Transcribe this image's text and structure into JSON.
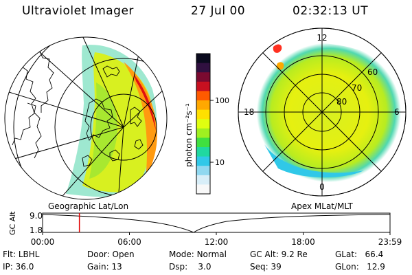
{
  "header": {
    "instrument": "Ultraviolet Imager",
    "date": "27 Jul 00",
    "time": "02:32:13 UT"
  },
  "colorbar": {
    "label": "photon cm⁻²s⁻¹",
    "ticks": [
      "100",
      "10"
    ],
    "colors": [
      "#0a0a1e",
      "#301040",
      "#7a0a30",
      "#c81020",
      "#ff5a00",
      "#ffa800",
      "#ffe000",
      "#e0ff10",
      "#a0f020",
      "#40e040",
      "#20d8a0",
      "#30c8e8",
      "#90d8f0",
      "#d8eef8",
      "#f8f8f8"
    ]
  },
  "left_map": {
    "projection_label": "Geographic Lat/Lon"
  },
  "right_map": {
    "projection_label": "Apex MLat/MLT",
    "mlt_labels": {
      "top": "12",
      "bottom": "0",
      "left": "18",
      "right": "6"
    },
    "lat_labels": [
      "60",
      "70",
      "80"
    ]
  },
  "timeline": {
    "ylabel": "GC Alt",
    "yticks": [
      "9.0",
      "1.8"
    ],
    "xticks": [
      "00:00",
      "06:00",
      "12:00",
      "18:00",
      "23:59"
    ],
    "marker_time_fraction": 0.106
  },
  "info": {
    "flt_label": "Flt:",
    "flt": "LBHL",
    "ip_label": "IP:",
    "ip": "36.0",
    "door_label": "Door:",
    "door": "Open",
    "gain_label": "Gain:",
    "gain": "13",
    "mode_label": "Mode:",
    "mode": "Normal",
    "dsp_label": "Dsp:",
    "dsp": "3.0",
    "gcalt_label": "GC Alt:",
    "gcalt": "9.2 Re",
    "seq_label": "Seq:",
    "seq": "39",
    "glat_label": "GLat:",
    "glat": "66.4",
    "glon_label": "GLon:",
    "glon": "12.9"
  }
}
